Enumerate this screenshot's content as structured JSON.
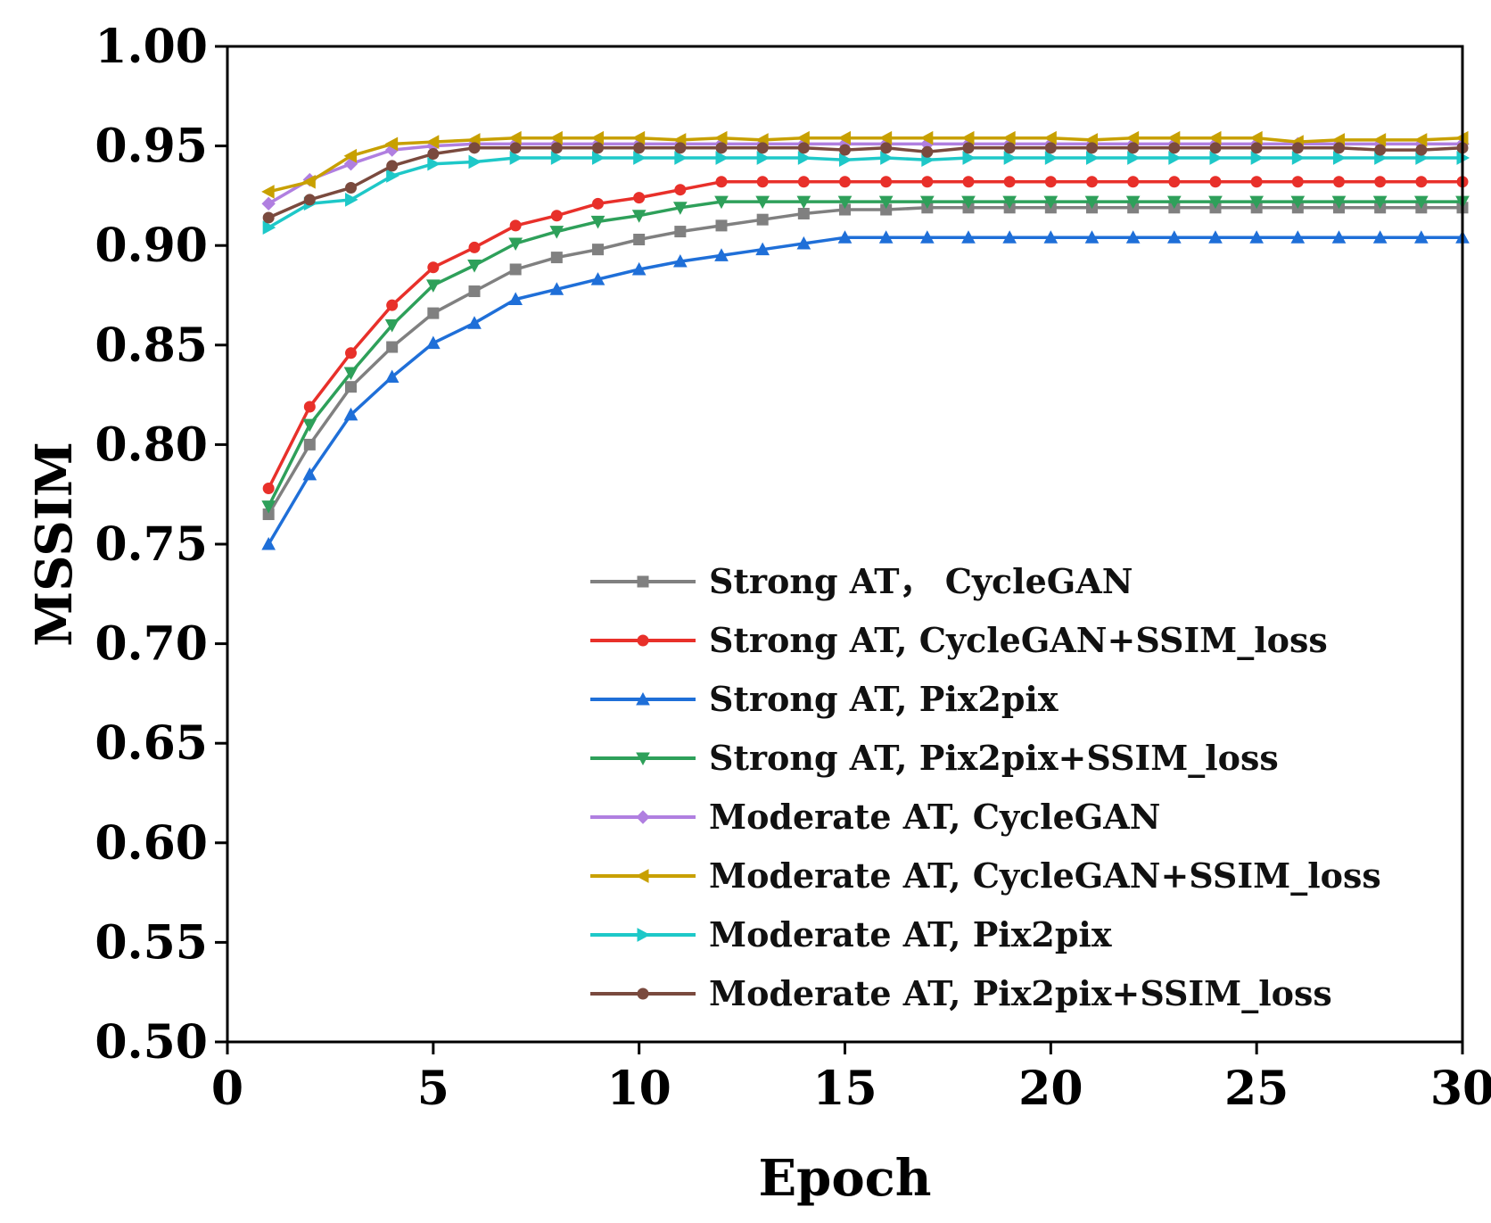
{
  "chart_data": {
    "type": "line",
    "xlabel": "Epoch",
    "ylabel": "MSSIM",
    "xlim": [
      0,
      30
    ],
    "ylim": [
      0.5,
      1.0
    ],
    "xticks": [
      "0",
      "5",
      "10",
      "15",
      "20",
      "25",
      "30"
    ],
    "yticks": [
      "0.50",
      "0.55",
      "0.60",
      "0.65",
      "0.70",
      "0.75",
      "0.80",
      "0.85",
      "0.90",
      "0.95",
      "1.00"
    ],
    "legend_position": "lower-right",
    "x": [
      1,
      2,
      3,
      4,
      5,
      6,
      7,
      8,
      9,
      10,
      11,
      12,
      13,
      14,
      15,
      16,
      17,
      18,
      19,
      20,
      21,
      22,
      23,
      24,
      25,
      26,
      27,
      28,
      29,
      30
    ],
    "series": [
      {
        "name": "Strong AT， CycleGAN",
        "color": "#808080",
        "marker": "square",
        "values": [
          0.765,
          0.8,
          0.829,
          0.849,
          0.866,
          0.877,
          0.888,
          0.894,
          0.898,
          0.903,
          0.907,
          0.91,
          0.913,
          0.916,
          0.918,
          0.918,
          0.919,
          0.919,
          0.919,
          0.919,
          0.919,
          0.919,
          0.919,
          0.919,
          0.919,
          0.919,
          0.919,
          0.919,
          0.919,
          0.919
        ]
      },
      {
        "name": "Strong AT, CycleGAN+SSIM_loss",
        "color": "#e8302a",
        "marker": "circle",
        "values": [
          0.778,
          0.819,
          0.846,
          0.87,
          0.889,
          0.899,
          0.91,
          0.915,
          0.921,
          0.924,
          0.928,
          0.932,
          0.932,
          0.932,
          0.932,
          0.932,
          0.932,
          0.932,
          0.932,
          0.932,
          0.932,
          0.932,
          0.932,
          0.932,
          0.932,
          0.932,
          0.932,
          0.932,
          0.932,
          0.932
        ]
      },
      {
        "name": "Strong AT, Pix2pix",
        "color": "#1f6fd8",
        "marker": "triangle-up",
        "values": [
          0.75,
          0.785,
          0.815,
          0.834,
          0.851,
          0.861,
          0.873,
          0.878,
          0.883,
          0.888,
          0.892,
          0.895,
          0.898,
          0.901,
          0.904,
          0.904,
          0.904,
          0.904,
          0.904,
          0.904,
          0.904,
          0.904,
          0.904,
          0.904,
          0.904,
          0.904,
          0.904,
          0.904,
          0.904,
          0.904
        ]
      },
      {
        "name": "Strong AT, Pix2pix+SSIM_loss",
        "color": "#2ea05a",
        "marker": "triangle-down",
        "values": [
          0.769,
          0.81,
          0.836,
          0.86,
          0.88,
          0.89,
          0.901,
          0.907,
          0.912,
          0.915,
          0.919,
          0.922,
          0.922,
          0.922,
          0.922,
          0.922,
          0.922,
          0.922,
          0.922,
          0.922,
          0.922,
          0.922,
          0.922,
          0.922,
          0.922,
          0.922,
          0.922,
          0.922,
          0.922,
          0.922
        ]
      },
      {
        "name": "Moderate AT, CycleGAN",
        "color": "#b07fe0",
        "marker": "diamond",
        "values": [
          0.921,
          0.933,
          0.941,
          0.948,
          0.95,
          0.951,
          0.951,
          0.951,
          0.951,
          0.951,
          0.951,
          0.951,
          0.951,
          0.951,
          0.951,
          0.951,
          0.951,
          0.951,
          0.951,
          0.951,
          0.951,
          0.951,
          0.951,
          0.951,
          0.951,
          0.951,
          0.951,
          0.951,
          0.951,
          0.951
        ]
      },
      {
        "name": "Moderate AT, CycleGAN+SSIM_loss",
        "color": "#c8a000",
        "marker": "triangle-left",
        "values": [
          0.927,
          0.932,
          0.945,
          0.951,
          0.952,
          0.953,
          0.954,
          0.954,
          0.954,
          0.954,
          0.953,
          0.954,
          0.953,
          0.954,
          0.954,
          0.954,
          0.954,
          0.954,
          0.954,
          0.954,
          0.953,
          0.954,
          0.954,
          0.954,
          0.954,
          0.952,
          0.953,
          0.953,
          0.953,
          0.954
        ]
      },
      {
        "name": "Moderate AT, Pix2pix",
        "color": "#1ec8c8",
        "marker": "triangle-right",
        "values": [
          0.909,
          0.921,
          0.923,
          0.935,
          0.941,
          0.942,
          0.944,
          0.944,
          0.944,
          0.944,
          0.944,
          0.944,
          0.944,
          0.944,
          0.943,
          0.944,
          0.943,
          0.944,
          0.944,
          0.944,
          0.944,
          0.944,
          0.944,
          0.944,
          0.944,
          0.944,
          0.944,
          0.944,
          0.944,
          0.944
        ]
      },
      {
        "name": "Moderate AT, Pix2pix+SSIM_loss",
        "color": "#7a4a3e",
        "marker": "circle",
        "values": [
          0.914,
          0.923,
          0.929,
          0.94,
          0.946,
          0.949,
          0.949,
          0.949,
          0.949,
          0.949,
          0.949,
          0.949,
          0.949,
          0.949,
          0.948,
          0.949,
          0.947,
          0.949,
          0.949,
          0.949,
          0.949,
          0.949,
          0.949,
          0.949,
          0.949,
          0.949,
          0.949,
          0.948,
          0.948,
          0.949
        ]
      }
    ]
  }
}
